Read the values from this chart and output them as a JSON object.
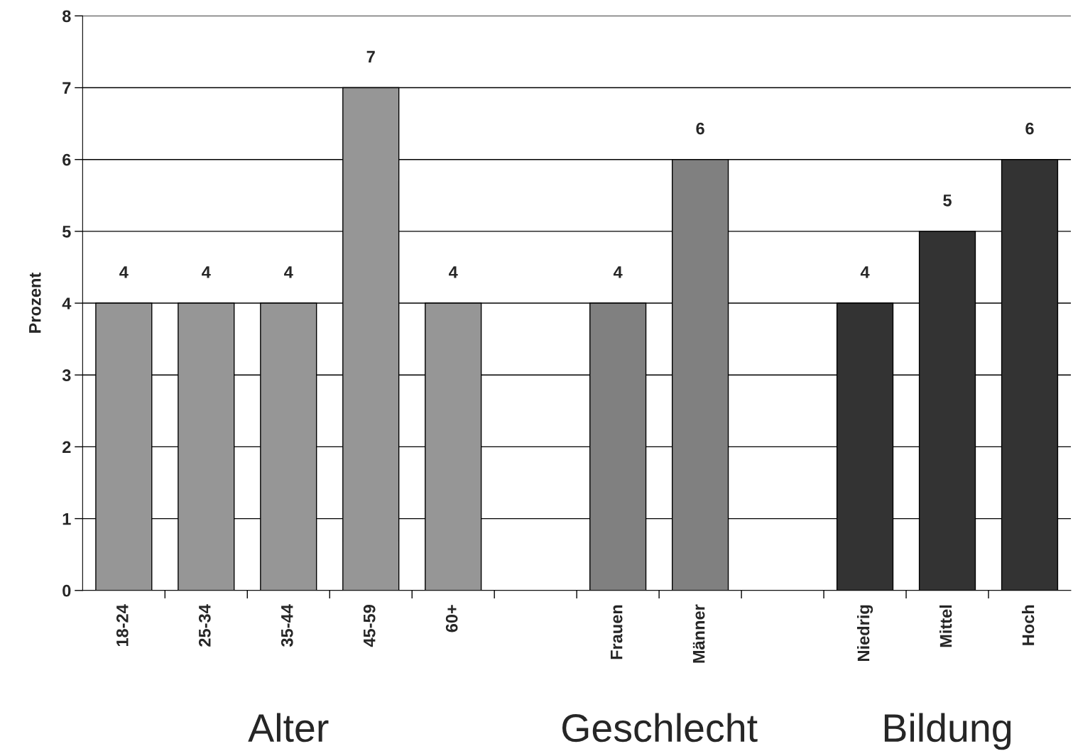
{
  "chart_data": {
    "type": "bar",
    "ylabel": "Prozent",
    "categories": [
      "18-24",
      "25-34",
      "35-44",
      "45-59",
      "60+",
      null,
      "Frauen",
      "Männer",
      null,
      "Niedrig",
      "Mittel",
      "Hoch"
    ],
    "values": [
      4,
      4,
      4,
      7,
      4,
      null,
      4,
      6,
      null,
      4,
      5,
      6
    ],
    "colors": [
      "#969696",
      "#969696",
      "#969696",
      "#969696",
      "#969696",
      null,
      "#808080",
      "#808080",
      null,
      "#333333",
      "#333333",
      "#333333"
    ],
    "ylim": [
      0,
      8
    ],
    "yticks": [
      0,
      1,
      2,
      3,
      4,
      5,
      6,
      7,
      8
    ],
    "grid": "y",
    "data_labels": true,
    "legend": false,
    "annotations": [
      "Alter",
      "Geschlecht",
      "Bildung"
    ]
  }
}
